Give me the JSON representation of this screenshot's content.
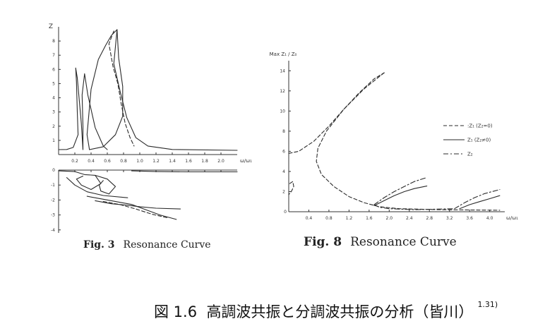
{
  "chart_data": [
    {
      "type": "line",
      "figure_label": "Fig. 3",
      "title": "Resonance Curve",
      "ylabel": "Z",
      "xlabel": "ω/ω₁",
      "x_ticks": [
        "0.2",
        "0.4",
        "0.6",
        "0.8",
        "1.0",
        "1.2",
        "1.4",
        "1.6",
        "1.8",
        "2.0"
      ],
      "y_ticks_upper": [
        "1",
        "2",
        "3",
        "4",
        "5",
        "6",
        "7",
        "8"
      ],
      "y_ticks_lower": [
        "-1",
        "-2",
        "-3",
        "-4"
      ],
      "upper_panel": {
        "xlim": [
          0,
          2.2
        ],
        "ylim": [
          0,
          9
        ],
        "series": [
          {
            "style": "solid",
            "points": [
              [
                0,
                0.35
              ],
              [
                0.1,
                0.36
              ],
              [
                0.18,
                0.5
              ],
              [
                0.24,
                1.4
              ],
              [
                0.23,
                3
              ],
              [
                0.22,
                5.1
              ],
              [
                0.21,
                6.1
              ],
              [
                0.23,
                5.4
              ],
              [
                0.28,
                2.2
              ],
              [
                0.3,
                0.35
              ]
            ]
          },
          {
            "style": "solid",
            "points": [
              [
                0.3,
                0.35
              ],
              [
                0.3,
                2
              ],
              [
                0.29,
                4.2
              ],
              [
                0.32,
                5.7
              ],
              [
                0.36,
                4.2
              ],
              [
                0.45,
                1.9
              ],
              [
                0.55,
                0.6
              ],
              [
                0.6,
                0.35
              ]
            ]
          },
          {
            "style": "solid",
            "points": [
              [
                0.38,
                0.35
              ],
              [
                0.35,
                1.4
              ],
              [
                0.4,
                4.6
              ],
              [
                0.49,
                6.7
              ],
              [
                0.58,
                7.7
              ],
              [
                0.65,
                8.4
              ],
              [
                0.72,
                8.8
              ]
            ]
          },
          {
            "style": "solid",
            "points": [
              [
                0.38,
                0.35
              ],
              [
                0.55,
                0.55
              ],
              [
                0.7,
                1.4
              ],
              [
                0.79,
                2.7
              ],
              [
                0.79,
                4.8
              ],
              [
                0.74,
                6.8
              ],
              [
                0.72,
                8.8
              ]
            ]
          },
          {
            "style": "dashed",
            "points": [
              [
                0.68,
                8.7
              ],
              [
                0.62,
                7.8
              ],
              [
                0.67,
                6.2
              ],
              [
                0.73,
                5.0
              ],
              [
                0.77,
                3.6
              ],
              [
                0.82,
                2.2
              ],
              [
                0.88,
                1.2
              ],
              [
                0.93,
                0.6
              ]
            ]
          },
          {
            "style": "solid",
            "points": [
              [
                0.72,
                8.8
              ],
              [
                0.68,
                6.4
              ],
              [
                0.76,
                4.4
              ],
              [
                0.84,
                2.6
              ],
              [
                0.95,
                1.2
              ],
              [
                1.1,
                0.6
              ],
              [
                1.4,
                0.36
              ],
              [
                2.2,
                0.3
              ]
            ]
          }
        ]
      },
      "lower_panel": {
        "xlim": [
          0,
          2.2
        ],
        "ylim": [
          -4.2,
          0
        ],
        "series": [
          {
            "style": "solid",
            "points": [
              [
                0,
                -0.05
              ],
              [
                0.2,
                -0.1
              ],
              [
                0.32,
                -0.3
              ],
              [
                0.45,
                -0.35
              ],
              [
                0.52,
                -0.9
              ],
              [
                0.4,
                -1.3
              ],
              [
                0.28,
                -1.0
              ],
              [
                0.22,
                -0.6
              ],
              [
                0.3,
                -0.4
              ]
            ]
          },
          {
            "style": "solid",
            "points": [
              [
                0.45,
                -0.35
              ],
              [
                0.6,
                -0.6
              ],
              [
                0.7,
                -1.1
              ],
              [
                0.62,
                -1.6
              ],
              [
                0.52,
                -1.4
              ],
              [
                0.5,
                -1.0
              ],
              [
                0.55,
                -0.7
              ]
            ]
          },
          {
            "style": "solid",
            "points": [
              [
                0.1,
                -0.5
              ],
              [
                0.2,
                -1.0
              ],
              [
                0.35,
                -1.45
              ],
              [
                0.55,
                -1.7
              ],
              [
                0.85,
                -1.85
              ]
            ]
          },
          {
            "style": "solid",
            "points": [
              [
                0.35,
                -1.75
              ],
              [
                0.55,
                -1.95
              ],
              [
                0.75,
                -2.15
              ],
              [
                0.9,
                -2.3
              ],
              [
                1.05,
                -2.6
              ],
              [
                1.25,
                -3.0
              ],
              [
                1.45,
                -3.3
              ]
            ]
          },
          {
            "style": "solid",
            "points": [
              [
                0.45,
                -2.05
              ],
              [
                0.65,
                -2.25
              ],
              [
                0.85,
                -2.35
              ],
              [
                1.0,
                -2.45
              ],
              [
                1.2,
                -2.55
              ],
              [
                1.5,
                -2.6
              ]
            ]
          },
          {
            "style": "dashed",
            "points": [
              [
                0.55,
                -2.1
              ],
              [
                0.75,
                -2.3
              ],
              [
                0.95,
                -2.6
              ],
              [
                1.15,
                -2.95
              ],
              [
                1.35,
                -3.2
              ]
            ]
          },
          {
            "style": "solid",
            "points": [
              [
                0.9,
                -0.05
              ],
              [
                1.2,
                -0.1
              ],
              [
                1.6,
                -0.12
              ],
              [
                2.2,
                -0.12
              ]
            ]
          }
        ]
      }
    },
    {
      "type": "line",
      "figure_label": "Fig. 8",
      "title": "Resonance Curve",
      "ylabel": "Max Z₁ / Z₀",
      "xlabel": "ω/ω₁",
      "x_ticks": [
        "0.4",
        "0.8",
        "1.2",
        "1.6",
        "2.0",
        "2.4",
        "2.8",
        "3.2",
        "3.6",
        "4.0"
      ],
      "y_ticks": [
        "2",
        "4",
        "6",
        "8",
        "10",
        "12",
        "14"
      ],
      "xlim": [
        0,
        4.3
      ],
      "ylim": [
        0,
        15
      ],
      "legend": [
        {
          "label": ":Z₁ (Z₂=0)",
          "style": "dashed"
        },
        {
          "label": "Z₁ (Z₂≠0)",
          "style": "solid"
        },
        {
          "label": "Z₂",
          "style": "dashdot"
        }
      ],
      "series": [
        {
          "legend_index": 0,
          "style": "dashed",
          "points": [
            [
              0,
              5.8
            ],
            [
              0.2,
              6.0
            ],
            [
              0.5,
              7.0
            ],
            [
              0.8,
              8.5
            ],
            [
              1.1,
              10.2
            ],
            [
              1.4,
              11.8
            ],
            [
              1.7,
              13.2
            ],
            [
              1.9,
              13.8
            ]
          ]
        },
        {
          "legend_index": 0,
          "style": "dashed",
          "points": [
            [
              1.9,
              13.8
            ],
            [
              1.5,
              12.2
            ],
            [
              1.1,
              10.2
            ],
            [
              0.75,
              8.0
            ],
            [
              0.58,
              6.3
            ],
            [
              0.55,
              5.0
            ],
            [
              0.65,
              3.7
            ],
            [
              0.9,
              2.5
            ],
            [
              1.2,
              1.5
            ],
            [
              1.5,
              0.9
            ],
            [
              1.8,
              0.5
            ],
            [
              2.2,
              0.3
            ],
            [
              3.0,
              0.2
            ],
            [
              4.2,
              0.15
            ]
          ]
        },
        {
          "legend_index": 0,
          "style": "dashed",
          "points": [
            [
              0.02,
              2.8
            ],
            [
              0.08,
              3.0
            ],
            [
              0.1,
              2.5
            ],
            [
              0.05,
              2.0
            ],
            [
              0.0,
              1.7
            ]
          ]
        },
        {
          "legend_index": 1,
          "style": "solid",
          "points": [
            [
              1.7,
              0.6
            ],
            [
              1.9,
              1.1
            ],
            [
              2.1,
              1.6
            ],
            [
              2.3,
              2.0
            ],
            [
              2.5,
              2.3
            ],
            [
              2.75,
              2.55
            ]
          ]
        },
        {
          "legend_index": 2,
          "style": "dashdot",
          "points": [
            [
              1.7,
              0.7
            ],
            [
              1.9,
              1.4
            ],
            [
              2.1,
              2.0
            ],
            [
              2.3,
              2.5
            ],
            [
              2.5,
              3.0
            ],
            [
              2.75,
              3.4
            ]
          ]
        },
        {
          "legend_index": 2,
          "style": "dashdot",
          "points": [
            [
              1.7,
              0.7
            ],
            [
              1.8,
              0.45
            ],
            [
              2.0,
              0.3
            ],
            [
              2.5,
              0.2
            ],
            [
              3.3,
              0.3
            ]
          ]
        },
        {
          "legend_index": 1,
          "style": "solid",
          "points": [
            [
              3.4,
              0.3
            ],
            [
              3.6,
              0.7
            ],
            [
              3.8,
              1.0
            ],
            [
              4.0,
              1.3
            ],
            [
              4.2,
              1.6
            ]
          ]
        },
        {
          "legend_index": 2,
          "style": "dashdot",
          "points": [
            [
              3.3,
              0.3
            ],
            [
              3.5,
              0.9
            ],
            [
              3.7,
              1.4
            ],
            [
              3.9,
              1.8
            ],
            [
              4.2,
              2.2
            ]
          ]
        }
      ]
    }
  ],
  "caption": {
    "label": "図 1.6",
    "text": "高調波共振と分調波共振の分析（皆川）",
    "ref": "1.31)"
  }
}
